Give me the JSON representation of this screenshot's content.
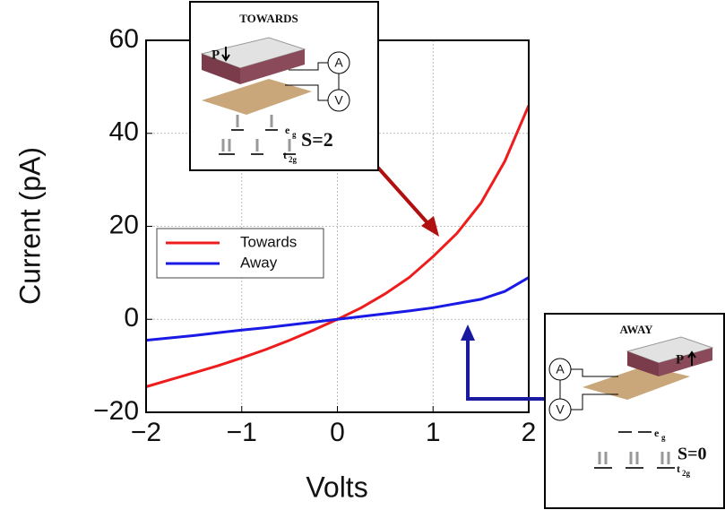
{
  "chart_data": {
    "type": "line",
    "xlabel": "Volts",
    "ylabel": "Current (pA)",
    "x": [
      -2,
      -1.75,
      -1.5,
      -1.25,
      -1,
      -0.75,
      -0.5,
      -0.25,
      0,
      0.25,
      0.5,
      0.75,
      1,
      1.25,
      1.5,
      1.75,
      2
    ],
    "series": [
      {
        "name": "Towards",
        "color": "#ee1c1c",
        "values": [
          -14.5,
          -13,
          -11.5,
          -10,
          -8.3,
          -6.5,
          -4.5,
          -2.3,
          0,
          2.5,
          5.5,
          9,
          13.5,
          18.5,
          25,
          34,
          46
        ]
      },
      {
        "name": "Away",
        "color": "#1a1ae6",
        "values": [
          -4.5,
          -4,
          -3.5,
          -2.9,
          -2.3,
          -1.8,
          -1.2,
          -0.6,
          0,
          0.6,
          1.2,
          1.8,
          2.5,
          3.4,
          4.3,
          6,
          9
        ]
      }
    ],
    "xlim": [
      -2,
      2
    ],
    "xticks": [
      {
        "value": -2,
        "label": "−2"
      },
      {
        "value": -1,
        "label": "−1"
      },
      0,
      1,
      2
    ],
    "ylim": [
      -20,
      60
    ],
    "yticks": [
      {
        "value": -20,
        "label": "−20"
      },
      0,
      20,
      40,
      60
    ],
    "grid": true,
    "legend": "upper left",
    "insets": [
      {
        "title": "TOWARDS",
        "spin": "S=2",
        "polarization": "P",
        "meters": [
          "A",
          "V"
        ],
        "levels": [
          {
            "text": "e",
            "sub": "g"
          },
          {
            "text": "t",
            "sub": "2g"
          }
        ]
      },
      {
        "title": "AWAY",
        "spin": "S=0",
        "polarization": "P",
        "meters": [
          "A",
          "V"
        ],
        "levels": [
          {
            "text": "e",
            "sub": "g"
          },
          {
            "text": "t",
            "sub": "2g"
          }
        ]
      }
    ]
  }
}
